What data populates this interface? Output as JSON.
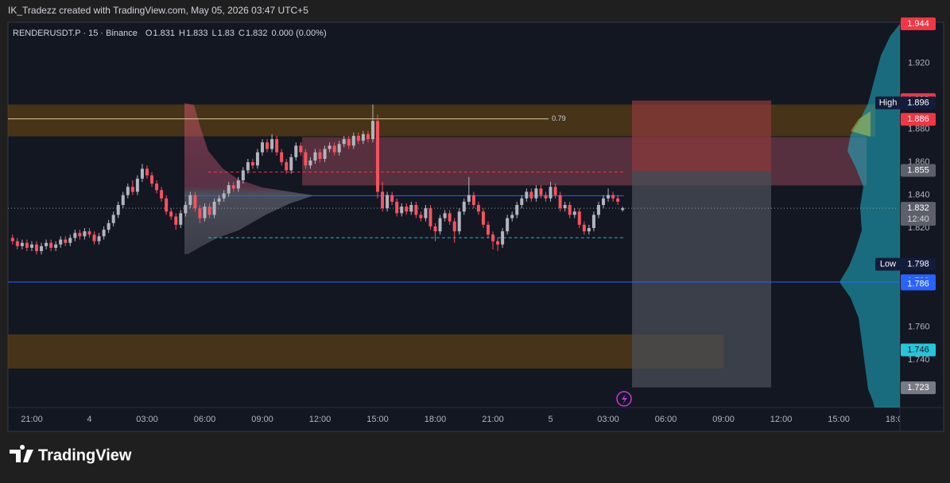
{
  "chart_data": {
    "type": "candlestick",
    "attribution": "IK_Tradezz created with TradingView.com, May 05, 2026 03:47 UTC+5",
    "symbol": "RENDERUSDT.P · 15 · Binance",
    "ohlc": [
      {
        "label": "O",
        "value": 1.831
      },
      {
        "label": "H",
        "value": 1.833
      },
      {
        "label": "L",
        "value": 1.83
      },
      {
        "label": "C",
        "value": 1.832
      }
    ],
    "change": "0.000 (0.00%)",
    "watermark": "TradingView",
    "xlim": [
      -1.24,
      45.1
    ],
    "ylim": [
      1.711,
      1.944
    ],
    "xticks": [
      {
        "value": 0,
        "label": "21:00"
      },
      {
        "value": 3,
        "label": "4"
      },
      {
        "value": 6,
        "label": "03:00"
      },
      {
        "value": 9,
        "label": "06:00"
      },
      {
        "value": 12,
        "label": "09:00"
      },
      {
        "value": 15,
        "label": "12:00"
      },
      {
        "value": 18,
        "label": "15:00"
      },
      {
        "value": 21,
        "label": "18:00"
      },
      {
        "value": 24,
        "label": "21:00"
      },
      {
        "value": 27,
        "label": "5"
      },
      {
        "value": 30,
        "label": "03:00"
      },
      {
        "value": 33,
        "label": "06:00"
      },
      {
        "value": 36,
        "label": "09:00"
      },
      {
        "value": 39,
        "label": "12:00"
      },
      {
        "value": 42,
        "label": "15:00"
      },
      {
        "value": 45,
        "label": "18:00"
      }
    ],
    "yticks": [
      {
        "value": 1.92,
        "label": "1.920"
      },
      {
        "value": 1.88,
        "label": "1.880"
      },
      {
        "value": 1.86,
        "label": "1.860"
      },
      {
        "value": 1.84,
        "label": "1.840"
      },
      {
        "value": 1.82,
        "label": "1.820"
      },
      {
        "value": 1.76,
        "label": "1.760"
      },
      {
        "value": 1.74,
        "label": "1.740"
      }
    ],
    "series": [
      {
        "up_color": "#b2b5be",
        "down_color": "#f7525f",
        "x": [
          -1,
          -0.75,
          -0.5,
          -0.25,
          0,
          0.25,
          0.5,
          0.75,
          1,
          1.25,
          1.5,
          1.75,
          2,
          2.25,
          2.5,
          2.75,
          3,
          3.25,
          3.5,
          3.75,
          4,
          4.25,
          4.5,
          4.75,
          5,
          5.25,
          5.5,
          5.75,
          6,
          6.25,
          6.5,
          6.75,
          7,
          7.25,
          7.5,
          7.75,
          8,
          8.25,
          8.5,
          8.75,
          9,
          9.25,
          9.5,
          9.75,
          10,
          10.25,
          10.5,
          10.75,
          11,
          11.25,
          11.5,
          11.75,
          12,
          12.25,
          12.5,
          12.75,
          13,
          13.25,
          13.5,
          13.75,
          14,
          14.25,
          14.5,
          14.75,
          15,
          15.25,
          15.5,
          15.75,
          16,
          16.25,
          16.5,
          16.75,
          17,
          17.25,
          17.5,
          17.75,
          18,
          18.25,
          18.5,
          18.75,
          19,
          19.25,
          19.5,
          19.75,
          20,
          20.25,
          20.5,
          20.75,
          21,
          21.25,
          21.5,
          21.75,
          22,
          22.25,
          22.5,
          22.75,
          23,
          23.25,
          23.5,
          23.75,
          24,
          24.25,
          24.5,
          24.75,
          25,
          25.25,
          25.5,
          25.75,
          26,
          26.25,
          26.5,
          26.75,
          27,
          27.25,
          27.5,
          27.75,
          28,
          28.25,
          28.5,
          28.75,
          29,
          29.25,
          29.5,
          29.75,
          30,
          30.25,
          30.5,
          30.75
        ],
        "open": [
          1.814,
          1.812,
          1.809,
          1.811,
          1.808,
          1.81,
          1.806,
          1.809,
          1.811,
          1.808,
          1.81,
          1.813,
          1.811,
          1.814,
          1.817,
          1.815,
          1.818,
          1.816,
          1.812,
          1.815,
          1.819,
          1.823,
          1.828,
          1.834,
          1.84,
          1.845,
          1.842,
          1.85,
          1.856,
          1.852,
          1.847,
          1.843,
          1.838,
          1.83,
          1.827,
          1.822,
          1.829,
          1.834,
          1.84,
          1.832,
          1.826,
          1.833,
          1.828,
          1.836,
          1.838,
          1.841,
          1.846,
          1.844,
          1.849,
          1.855,
          1.86,
          1.858,
          1.866,
          1.872,
          1.868,
          1.874,
          1.866,
          1.86,
          1.855,
          1.863,
          1.87,
          1.866,
          1.858,
          1.861,
          1.866,
          1.862,
          1.868,
          1.87,
          1.866,
          1.871,
          1.874,
          1.87,
          1.876,
          1.873,
          1.877,
          1.874,
          1.885,
          1.842,
          1.832,
          1.84,
          1.836,
          1.829,
          1.833,
          1.83,
          1.834,
          1.828,
          1.826,
          1.832,
          1.821,
          1.818,
          1.826,
          1.829,
          1.824,
          1.818,
          1.83,
          1.836,
          1.84,
          1.834,
          1.83,
          1.822,
          1.816,
          1.812,
          1.81,
          1.818,
          1.826,
          1.828,
          1.834,
          1.838,
          1.842,
          1.838,
          1.844,
          1.84,
          1.838,
          1.845,
          1.84,
          1.832,
          1.834,
          1.828,
          1.83,
          1.822,
          1.818,
          1.82,
          1.828,
          1.834,
          1.838,
          1.84,
          1.838,
          1.831
        ],
        "high": [
          1.816,
          1.814,
          1.813,
          1.813,
          1.812,
          1.812,
          1.811,
          1.813,
          1.813,
          1.812,
          1.815,
          1.815,
          1.816,
          1.819,
          1.819,
          1.82,
          1.82,
          1.818,
          1.817,
          1.821,
          1.825,
          1.83,
          1.836,
          1.842,
          1.847,
          1.849,
          1.852,
          1.859,
          1.858,
          1.854,
          1.849,
          1.845,
          1.84,
          1.832,
          1.829,
          1.831,
          1.836,
          1.842,
          1.842,
          1.834,
          1.835,
          1.835,
          1.838,
          1.84,
          1.843,
          1.848,
          1.848,
          1.851,
          1.857,
          1.862,
          1.862,
          1.868,
          1.874,
          1.874,
          1.877,
          1.876,
          1.868,
          1.862,
          1.865,
          1.872,
          1.872,
          1.868,
          1.863,
          1.868,
          1.868,
          1.87,
          1.872,
          1.872,
          1.873,
          1.876,
          1.876,
          1.878,
          1.878,
          1.879,
          1.879,
          1.895,
          1.889,
          1.848,
          1.842,
          1.842,
          1.838,
          1.835,
          1.835,
          1.836,
          1.836,
          1.83,
          1.834,
          1.834,
          1.823,
          1.828,
          1.831,
          1.831,
          1.826,
          1.832,
          1.838,
          1.851,
          1.842,
          1.836,
          1.832,
          1.824,
          1.818,
          1.814,
          1.82,
          1.828,
          1.83,
          1.836,
          1.84,
          1.844,
          1.844,
          1.846,
          1.846,
          1.842,
          1.848,
          1.847,
          1.842,
          1.836,
          1.836,
          1.832,
          1.832,
          1.824,
          1.822,
          1.83,
          1.836,
          1.84,
          1.844,
          1.842,
          1.84,
          1.833
        ],
        "low": [
          1.81,
          1.807,
          1.807,
          1.806,
          1.806,
          1.804,
          1.804,
          1.807,
          1.806,
          1.806,
          1.808,
          1.809,
          1.809,
          1.812,
          1.813,
          1.813,
          1.814,
          1.81,
          1.81,
          1.813,
          1.817,
          1.821,
          1.826,
          1.832,
          1.838,
          1.84,
          1.84,
          1.848,
          1.85,
          1.845,
          1.841,
          1.836,
          1.828,
          1.825,
          1.819,
          1.82,
          1.827,
          1.832,
          1.83,
          1.823,
          1.824,
          1.826,
          1.826,
          1.834,
          1.836,
          1.839,
          1.842,
          1.842,
          1.847,
          1.853,
          1.856,
          1.856,
          1.864,
          1.866,
          1.866,
          1.864,
          1.858,
          1.853,
          1.853,
          1.861,
          1.864,
          1.856,
          1.856,
          1.859,
          1.86,
          1.86,
          1.866,
          1.864,
          1.864,
          1.869,
          1.868,
          1.868,
          1.871,
          1.871,
          1.872,
          1.872,
          1.838,
          1.83,
          1.83,
          1.834,
          1.827,
          1.827,
          1.828,
          1.828,
          1.826,
          1.824,
          1.824,
          1.819,
          1.812,
          1.816,
          1.824,
          1.822,
          1.811,
          1.816,
          1.828,
          1.834,
          1.832,
          1.828,
          1.82,
          1.814,
          1.807,
          1.806,
          1.808,
          1.816,
          1.824,
          1.826,
          1.832,
          1.836,
          1.836,
          1.836,
          1.838,
          1.836,
          1.836,
          1.838,
          1.83,
          1.83,
          1.826,
          1.826,
          1.82,
          1.816,
          1.816,
          1.818,
          1.826,
          1.832,
          1.836,
          1.836,
          1.834,
          1.83
        ],
        "close": [
          1.812,
          1.809,
          1.811,
          1.808,
          1.81,
          1.806,
          1.809,
          1.811,
          1.808,
          1.81,
          1.813,
          1.811,
          1.814,
          1.817,
          1.815,
          1.818,
          1.816,
          1.812,
          1.815,
          1.819,
          1.823,
          1.828,
          1.834,
          1.84,
          1.845,
          1.842,
          1.85,
          1.856,
          1.852,
          1.847,
          1.843,
          1.838,
          1.83,
          1.827,
          1.822,
          1.829,
          1.834,
          1.84,
          1.832,
          1.826,
          1.833,
          1.828,
          1.836,
          1.838,
          1.841,
          1.846,
          1.844,
          1.849,
          1.855,
          1.86,
          1.858,
          1.866,
          1.872,
          1.868,
          1.874,
          1.866,
          1.86,
          1.855,
          1.863,
          1.87,
          1.866,
          1.858,
          1.861,
          1.866,
          1.862,
          1.868,
          1.87,
          1.866,
          1.871,
          1.874,
          1.87,
          1.876,
          1.873,
          1.877,
          1.874,
          1.885,
          1.842,
          1.832,
          1.84,
          1.836,
          1.829,
          1.833,
          1.83,
          1.834,
          1.828,
          1.826,
          1.832,
          1.821,
          1.818,
          1.826,
          1.829,
          1.824,
          1.818,
          1.83,
          1.836,
          1.84,
          1.834,
          1.83,
          1.822,
          1.816,
          1.812,
          1.81,
          1.818,
          1.826,
          1.828,
          1.834,
          1.838,
          1.842,
          1.838,
          1.844,
          1.84,
          1.838,
          1.845,
          1.84,
          1.832,
          1.834,
          1.828,
          1.83,
          1.822,
          1.818,
          1.82,
          1.828,
          1.834,
          1.838,
          1.84,
          1.838,
          1.836,
          1.832
        ]
      }
    ],
    "zones": [
      {
        "from": -1.24,
        "to": 43.9,
        "top": 1.895,
        "bottom": 1.8757,
        "color": "#5a3d14"
      },
      {
        "from": -1.24,
        "to": 36.0,
        "top": 1.7554,
        "bottom": 1.7347,
        "color": "#5a3d14"
      },
      {
        "from": 14.07,
        "to": 43.45,
        "top": 1.8752,
        "bottom": 1.8459,
        "color": "#6e3a48"
      },
      {
        "from": 31.24,
        "to": 38.48,
        "top": 1.8974,
        "bottom": 1.8545,
        "color": "#8a3a3c"
      },
      {
        "from": 31.24,
        "to": 38.48,
        "top": 1.8545,
        "bottom": 1.7232,
        "color": "#4a4d57"
      }
    ],
    "levels": [
      {
        "value": 1.8863,
        "from": -1.24,
        "to": 26.9,
        "color": "#d8c9a0",
        "dash": false,
        "label": "0.79"
      },
      {
        "value": 1.8396,
        "from": 7.94,
        "to": 30.82,
        "color": "#2962ff",
        "dash": false
      },
      {
        "value": 1.854,
        "from": 9.18,
        "to": 30.82,
        "color": "#f23645",
        "dash": true
      },
      {
        "value": 1.8141,
        "from": 9.18,
        "to": 30.82,
        "color": "#22b5c9",
        "dash": true
      },
      {
        "value": 1.7872,
        "from": -1.24,
        "to": 45.1,
        "color": "#2962ff",
        "dash": false
      }
    ],
    "countdown": "12:40",
    "price_labels": [
      {
        "value": 1.944,
        "color": "#f23645",
        "text_color": "#ffffff"
      },
      {
        "value": 1.898,
        "color": "#f23645",
        "text_color": "#ffffff"
      },
      {
        "value": 1.896,
        "color": "#131c3a",
        "text_color": "#ffffff",
        "tag": "High"
      },
      {
        "value": 1.886,
        "color": "#f23645",
        "text_color": "#ffffff"
      },
      {
        "value": 1.855,
        "color": "#5d606b",
        "text_color": "#ffffff"
      },
      {
        "value": 1.798,
        "color": "#131c3a",
        "text_color": "#ffffff",
        "tag": "Low"
      },
      {
        "value": 1.788,
        "color": "#2962ff",
        "text_color": "#ffffff"
      },
      {
        "value": 1.786,
        "color": "#2962ff",
        "text_color": "#ffffff"
      },
      {
        "value": 1.746,
        "color": "#26c6da",
        "text_color": "#131722"
      },
      {
        "value": 1.723,
        "color": "#787b86",
        "text_color": "#ffffff"
      }
    ]
  }
}
